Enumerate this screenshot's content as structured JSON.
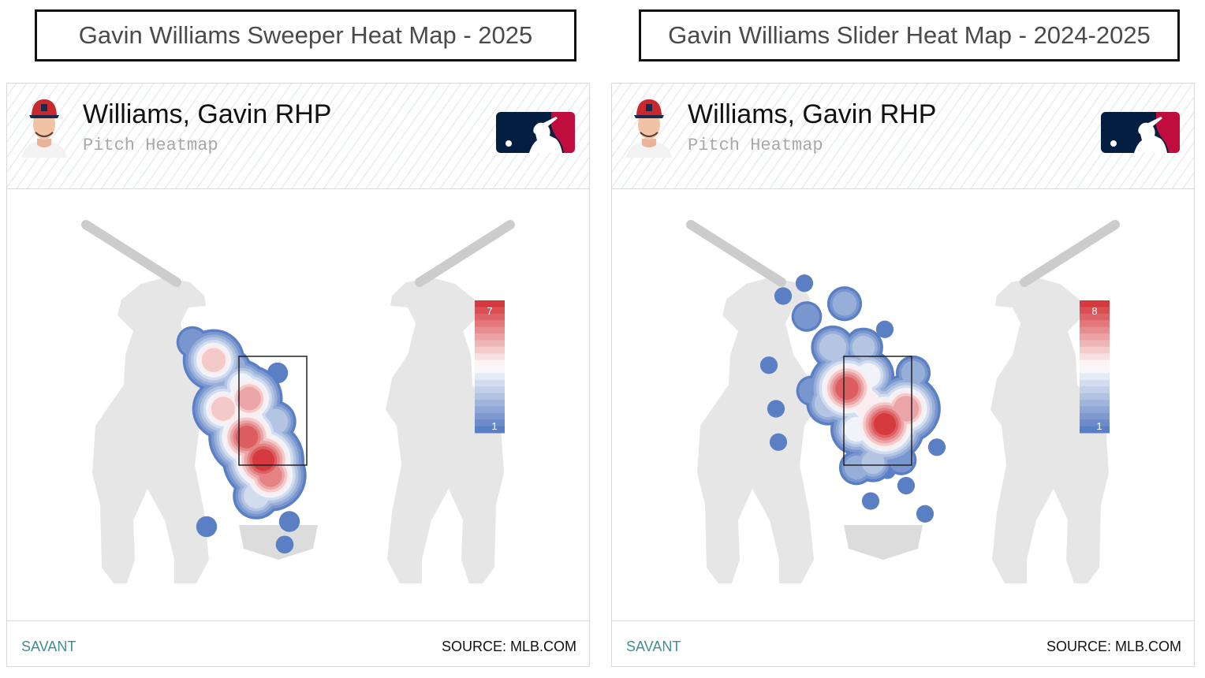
{
  "titles": {
    "left": "Gavin Williams Sweeper Heat Map - 2025",
    "right": "Gavin Williams Slider Heat Map - 2024-2025"
  },
  "panels": [
    {
      "player": "Williams, Gavin RHP",
      "subtitle": "Pitch Heatmap",
      "footer_left": "SAVANT",
      "footer_right": "SOURCE: MLB.COM"
    },
    {
      "player": "Williams, Gavin RHP",
      "subtitle": "Pitch Heatmap",
      "footer_left": "SAVANT",
      "footer_right": "SOURCE: MLB.COM"
    }
  ],
  "colors": {
    "low": "#5b7fc4",
    "mid": "#ffffff",
    "high": "#d43a3e",
    "silhouette": "#e6e6e6",
    "bat": "#cccccc",
    "mlb_blue": "#041e42",
    "mlb_red": "#bf0d3e"
  },
  "icons": [
    "player-headshot",
    "mlb-logo-icon"
  ],
  "chart_data": [
    {
      "type": "heatmap",
      "title": "Gavin Williams Sweeper Heat Map - 2025",
      "scale_min": 1,
      "scale_max": 7,
      "hotspots": [
        {
          "x": -0.55,
          "y": 2.05,
          "v": 6.5
        },
        {
          "x": -0.2,
          "y": 1.6,
          "v": 7.0
        },
        {
          "x": -0.05,
          "y": 1.3,
          "v": 6.0
        },
        {
          "x": -0.5,
          "y": 2.8,
          "v": 5.5
        },
        {
          "x": -1.05,
          "y": 2.6,
          "v": 5.0
        },
        {
          "x": -1.25,
          "y": 3.55,
          "v": 5.0
        },
        {
          "x": -0.65,
          "y": 3.05,
          "v": 4.0
        },
        {
          "x": 0.05,
          "y": 2.35,
          "v": 3.0
        },
        {
          "x": -0.45,
          "y": 2.35,
          "v": 4.0
        },
        {
          "x": -0.35,
          "y": 0.9,
          "v": 3.5
        },
        {
          "x": -0.85,
          "y": 3.4,
          "v": 2.5
        },
        {
          "x": -0.1,
          "y": 2.0,
          "v": 3.0
        },
        {
          "x": 0.1,
          "y": 3.3,
          "v": 1.5
        },
        {
          "x": -1.7,
          "y": 3.9,
          "v": 2.0
        },
        {
          "x": -1.4,
          "y": 0.3,
          "v": 1.5
        },
        {
          "x": 0.35,
          "y": 0.4,
          "v": 1.5
        },
        {
          "x": 0.25,
          "y": -0.05,
          "v": 1.2
        }
      ]
    },
    {
      "type": "heatmap",
      "title": "Gavin Williams Slider Heat Map - 2024-2025",
      "scale_min": 1,
      "scale_max": 8,
      "hotspots": [
        {
          "x": -0.65,
          "y": 3.0,
          "v": 7.5
        },
        {
          "x": 0.15,
          "y": 2.3,
          "v": 8.0
        },
        {
          "x": 0.6,
          "y": 2.6,
          "v": 6.5
        },
        {
          "x": -0.25,
          "y": 2.7,
          "v": 5.0
        },
        {
          "x": -0.2,
          "y": 3.25,
          "v": 4.5
        },
        {
          "x": -0.45,
          "y": 2.2,
          "v": 4.5
        },
        {
          "x": -0.3,
          "y": 3.8,
          "v": 3.0
        },
        {
          "x": -0.95,
          "y": 3.8,
          "v": 3.5
        },
        {
          "x": -1.05,
          "y": 2.7,
          "v": 3.5
        },
        {
          "x": -0.1,
          "y": 1.55,
          "v": 3.0
        },
        {
          "x": 0.75,
          "y": 3.3,
          "v": 2.5
        },
        {
          "x": -0.7,
          "y": 4.65,
          "v": 2.5
        },
        {
          "x": -0.45,
          "y": 1.45,
          "v": 2.5
        },
        {
          "x": -1.5,
          "y": 4.4,
          "v": 2.0
        },
        {
          "x": 0.5,
          "y": 1.6,
          "v": 2.0
        },
        {
          "x": -2.0,
          "y": 4.8,
          "v": 1.2
        },
        {
          "x": -1.55,
          "y": 5.05,
          "v": 1.2
        },
        {
          "x": -2.3,
          "y": 3.45,
          "v": 1.2
        },
        {
          "x": -2.15,
          "y": 2.6,
          "v": 1.2
        },
        {
          "x": -2.1,
          "y": 1.95,
          "v": 1.2
        },
        {
          "x": -0.4,
          "y": 4.0,
          "v": 1.2
        },
        {
          "x": 0.15,
          "y": 4.15,
          "v": 1.2
        },
        {
          "x": 0.6,
          "y": 1.1,
          "v": 1.2
        },
        {
          "x": 0.2,
          "y": 1.4,
          "v": 1.2
        },
        {
          "x": -0.15,
          "y": 0.8,
          "v": 1.2
        },
        {
          "x": 1.25,
          "y": 1.85,
          "v": 1.2
        },
        {
          "x": 1.0,
          "y": 0.55,
          "v": 1.2
        },
        {
          "x": -1.4,
          "y": 2.95,
          "v": 2.0
        }
      ]
    }
  ]
}
